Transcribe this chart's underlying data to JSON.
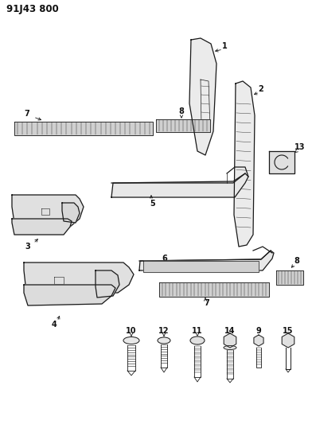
{
  "title": "91J43 800",
  "bg_color": "#ffffff",
  "line_color": "#1a1a1a",
  "label_color": "#111111",
  "title_fontsize": 8.5,
  "label_fontsize": 7,
  "fig_w": 3.92,
  "fig_h": 5.33,
  "dpi": 100
}
